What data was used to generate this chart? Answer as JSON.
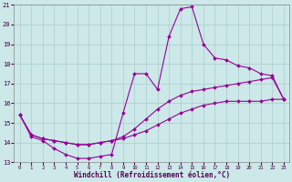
{
  "xlabel": "Windchill (Refroidissement éolien,°C)",
  "background_color": "#cce8e8",
  "grid_color": "#aacccc",
  "line_color": "#990099",
  "xlim": [
    -0.5,
    23.5
  ],
  "ylim": [
    13,
    21
  ],
  "xticks": [
    0,
    1,
    2,
    3,
    4,
    5,
    6,
    7,
    8,
    9,
    10,
    11,
    12,
    13,
    14,
    15,
    16,
    17,
    18,
    19,
    20,
    21,
    22,
    23
  ],
  "yticks": [
    13,
    14,
    15,
    16,
    17,
    18,
    19,
    20,
    21
  ],
  "hours": [
    0,
    1,
    2,
    3,
    4,
    5,
    6,
    7,
    8,
    9,
    10,
    11,
    12,
    13,
    14,
    15,
    16,
    17,
    18,
    19,
    20,
    21,
    22,
    23
  ],
  "windchill_actual": [
    15.4,
    14.3,
    14.1,
    13.7,
    13.4,
    13.2,
    13.2,
    13.3,
    13.4,
    15.5,
    17.5,
    17.5,
    16.7,
    19.4,
    20.8,
    20.9,
    19.0,
    18.3,
    18.2,
    17.9,
    17.8,
    17.5,
    17.4,
    16.2
  ],
  "line_upper": [
    15.4,
    14.4,
    14.2,
    14.1,
    14.0,
    13.9,
    13.9,
    14.0,
    14.1,
    14.3,
    14.7,
    15.2,
    15.7,
    16.1,
    16.4,
    16.6,
    16.7,
    16.8,
    16.9,
    17.0,
    17.1,
    17.2,
    17.3,
    16.2
  ],
  "line_lower": [
    15.4,
    14.4,
    14.2,
    14.1,
    14.0,
    13.9,
    13.9,
    14.0,
    14.1,
    14.2,
    14.4,
    14.6,
    14.9,
    15.2,
    15.5,
    15.7,
    15.9,
    16.0,
    16.1,
    16.1,
    16.1,
    16.1,
    16.2,
    16.2
  ]
}
